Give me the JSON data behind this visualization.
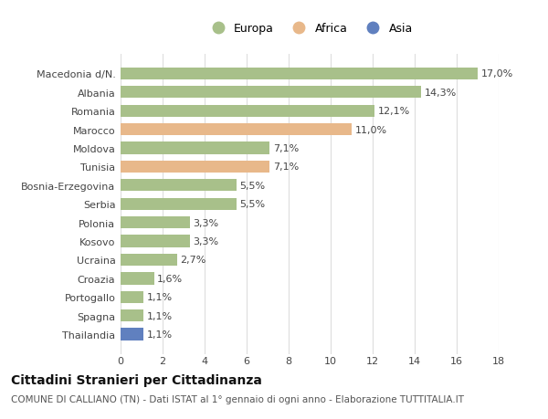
{
  "categories": [
    "Macedonia d/N.",
    "Albania",
    "Romania",
    "Marocco",
    "Moldova",
    "Tunisia",
    "Bosnia-Erzegovina",
    "Serbia",
    "Polonia",
    "Kosovo",
    "Ucraina",
    "Croazia",
    "Portogallo",
    "Spagna",
    "Thailandia"
  ],
  "values": [
    17.0,
    14.3,
    12.1,
    11.0,
    7.1,
    7.1,
    5.5,
    5.5,
    3.3,
    3.3,
    2.7,
    1.6,
    1.1,
    1.1,
    1.1
  ],
  "labels": [
    "17,0%",
    "14,3%",
    "12,1%",
    "11,0%",
    "7,1%",
    "7,1%",
    "5,5%",
    "5,5%",
    "3,3%",
    "3,3%",
    "2,7%",
    "1,6%",
    "1,1%",
    "1,1%",
    "1,1%"
  ],
  "continents": [
    "Europa",
    "Europa",
    "Europa",
    "Africa",
    "Europa",
    "Africa",
    "Europa",
    "Europa",
    "Europa",
    "Europa",
    "Europa",
    "Europa",
    "Europa",
    "Europa",
    "Asia"
  ],
  "colors": {
    "Europa": "#a8c08a",
    "Africa": "#e8b88a",
    "Asia": "#6080bf"
  },
  "xlim": [
    0,
    18
  ],
  "xticks": [
    0,
    2,
    4,
    6,
    8,
    10,
    12,
    14,
    16,
    18
  ],
  "title": "Cittadini Stranieri per Cittadinanza",
  "subtitle": "COMUNE DI CALLIANO (TN) - Dati ISTAT al 1° gennaio di ogni anno - Elaborazione TUTTITALIA.IT",
  "background_color": "#ffffff",
  "grid_color": "#dddddd",
  "bar_height": 0.65,
  "label_fontsize": 8,
  "tick_fontsize": 8,
  "title_fontsize": 10,
  "subtitle_fontsize": 7.5
}
